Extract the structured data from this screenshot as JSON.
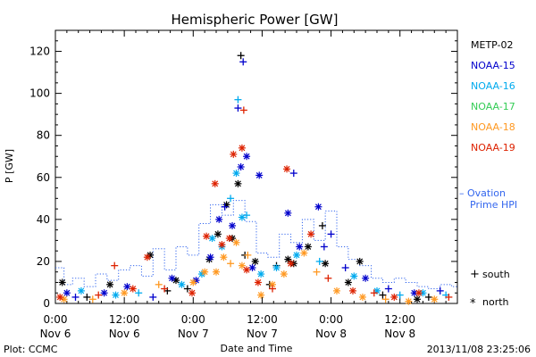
{
  "chart_data": {
    "type": "scatter",
    "title": "Hemispheric Power [GW]",
    "xlabel": "Date and Time",
    "ylabel": "P [GW]",
    "ylim": [
      0,
      130
    ],
    "xlim_hours": [
      0,
      70
    ],
    "grid": false,
    "legend_placement": "right",
    "y_ticks": [
      "0",
      "20",
      "40",
      "60",
      "80",
      "100",
      "120"
    ],
    "x_ticks": [
      {
        "t": 0,
        "line1": "0:00",
        "line2": "Nov 6"
      },
      {
        "t": 12,
        "line1": "12:00",
        "line2": "Nov 6"
      },
      {
        "t": 24,
        "line1": "0:00",
        "line2": "Nov 7"
      },
      {
        "t": 36,
        "line1": "12:00",
        "line2": "Nov 7"
      },
      {
        "t": 48,
        "line1": "0:00",
        "line2": "Nov 8"
      },
      {
        "t": 60,
        "line1": "12:00",
        "line2": "Nov 8"
      }
    ],
    "series": [
      {
        "name": "METP-02",
        "color": "#000000",
        "points": [
          {
            "x": 1.2,
            "y": 10,
            "m": "north"
          },
          {
            "x": 5.5,
            "y": 3,
            "m": "south"
          },
          {
            "x": 9.5,
            "y": 9,
            "m": "north"
          },
          {
            "x": 16.5,
            "y": 23,
            "m": "north"
          },
          {
            "x": 19.5,
            "y": 6,
            "m": "south"
          },
          {
            "x": 21,
            "y": 11,
            "m": "north"
          },
          {
            "x": 23,
            "y": 7,
            "m": "south"
          },
          {
            "x": 26.8,
            "y": 21,
            "m": "north"
          },
          {
            "x": 28.3,
            "y": 33,
            "m": "north"
          },
          {
            "x": 29.8,
            "y": 47,
            "m": "north"
          },
          {
            "x": 30.8,
            "y": 31,
            "m": "north"
          },
          {
            "x": 31.8,
            "y": 57,
            "m": "north"
          },
          {
            "x": 32.3,
            "y": 118,
            "m": "south"
          },
          {
            "x": 33,
            "y": 23,
            "m": "south"
          },
          {
            "x": 34.8,
            "y": 20,
            "m": "north"
          },
          {
            "x": 37.3,
            "y": 9,
            "m": "south"
          },
          {
            "x": 38.5,
            "y": 18,
            "m": "south"
          },
          {
            "x": 40.5,
            "y": 21,
            "m": "north"
          },
          {
            "x": 41.5,
            "y": 19,
            "m": "north"
          },
          {
            "x": 44,
            "y": 27,
            "m": "north"
          },
          {
            "x": 46.5,
            "y": 37,
            "m": "south"
          },
          {
            "x": 47,
            "y": 19,
            "m": "north"
          },
          {
            "x": 51,
            "y": 10,
            "m": "north"
          },
          {
            "x": 53,
            "y": 20,
            "m": "north"
          },
          {
            "x": 57,
            "y": 4,
            "m": "south"
          },
          {
            "x": 63,
            "y": 2,
            "m": "north"
          },
          {
            "x": 65,
            "y": 3,
            "m": "south"
          }
        ]
      },
      {
        "name": "NOAA-15",
        "color": "#0000cc",
        "points": [
          {
            "x": 2,
            "y": 5,
            "m": "north"
          },
          {
            "x": 3.5,
            "y": 3,
            "m": "south"
          },
          {
            "x": 8.5,
            "y": 5,
            "m": "north"
          },
          {
            "x": 12.5,
            "y": 8,
            "m": "north"
          },
          {
            "x": 17,
            "y": 3,
            "m": "south"
          },
          {
            "x": 20.3,
            "y": 12,
            "m": "north"
          },
          {
            "x": 24.5,
            "y": 11,
            "m": "north"
          },
          {
            "x": 27,
            "y": 22,
            "m": "north"
          },
          {
            "x": 28.5,
            "y": 40,
            "m": "north"
          },
          {
            "x": 29.5,
            "y": 46,
            "m": "south"
          },
          {
            "x": 30.8,
            "y": 37,
            "m": "north"
          },
          {
            "x": 31.8,
            "y": 93,
            "m": "south"
          },
          {
            "x": 32.3,
            "y": 65,
            "m": "north"
          },
          {
            "x": 32.7,
            "y": 115,
            "m": "south"
          },
          {
            "x": 33.3,
            "y": 70,
            "m": "north"
          },
          {
            "x": 34.3,
            "y": 17,
            "m": "north"
          },
          {
            "x": 35.5,
            "y": 61,
            "m": "north"
          },
          {
            "x": 40.5,
            "y": 43,
            "m": "north"
          },
          {
            "x": 41.5,
            "y": 62,
            "m": "south"
          },
          {
            "x": 42.5,
            "y": 27,
            "m": "north"
          },
          {
            "x": 45.8,
            "y": 46,
            "m": "north"
          },
          {
            "x": 46.8,
            "y": 27,
            "m": "south"
          },
          {
            "x": 48,
            "y": 33,
            "m": "south"
          },
          {
            "x": 50.5,
            "y": 17,
            "m": "south"
          },
          {
            "x": 54,
            "y": 12,
            "m": "north"
          },
          {
            "x": 58,
            "y": 7,
            "m": "south"
          },
          {
            "x": 62.5,
            "y": 5,
            "m": "north"
          },
          {
            "x": 67,
            "y": 6,
            "m": "south"
          }
        ]
      },
      {
        "name": "NOAA-16",
        "color": "#00aaee",
        "points": [
          {
            "x": 4.5,
            "y": 6,
            "m": "north"
          },
          {
            "x": 10.5,
            "y": 4,
            "m": "north"
          },
          {
            "x": 14.5,
            "y": 5,
            "m": "south"
          },
          {
            "x": 22,
            "y": 9,
            "m": "north"
          },
          {
            "x": 25.5,
            "y": 14,
            "m": "north"
          },
          {
            "x": 27.3,
            "y": 31,
            "m": "north"
          },
          {
            "x": 29,
            "y": 27,
            "m": "north"
          },
          {
            "x": 30.5,
            "y": 50,
            "m": "south"
          },
          {
            "x": 31.5,
            "y": 62,
            "m": "north"
          },
          {
            "x": 31.8,
            "y": 97,
            "m": "south"
          },
          {
            "x": 32.5,
            "y": 41,
            "m": "north"
          },
          {
            "x": 33.3,
            "y": 42,
            "m": "south"
          },
          {
            "x": 35.8,
            "y": 14,
            "m": "north"
          },
          {
            "x": 38.5,
            "y": 17,
            "m": "north"
          },
          {
            "x": 42,
            "y": 23,
            "m": "north"
          },
          {
            "x": 46,
            "y": 20,
            "m": "south"
          },
          {
            "x": 52,
            "y": 13,
            "m": "north"
          },
          {
            "x": 56,
            "y": 6,
            "m": "north"
          },
          {
            "x": 60,
            "y": 4,
            "m": "south"
          },
          {
            "x": 64,
            "y": 5,
            "m": "north"
          },
          {
            "x": 68,
            "y": 4,
            "m": "south"
          }
        ]
      },
      {
        "name": "NOAA-17",
        "color": "#33cc55",
        "points": []
      },
      {
        "name": "NOAA-18",
        "color": "#ff9922",
        "points": [
          {
            "x": 1.5,
            "y": 2,
            "m": "north"
          },
          {
            "x": 6.5,
            "y": 2,
            "m": "south"
          },
          {
            "x": 12,
            "y": 5,
            "m": "north"
          },
          {
            "x": 18,
            "y": 9,
            "m": "south"
          },
          {
            "x": 24,
            "y": 10,
            "m": "north"
          },
          {
            "x": 26,
            "y": 15,
            "m": "north"
          },
          {
            "x": 28,
            "y": 15,
            "m": "north"
          },
          {
            "x": 29.3,
            "y": 22,
            "m": "north"
          },
          {
            "x": 30.5,
            "y": 19,
            "m": "south"
          },
          {
            "x": 31.5,
            "y": 29,
            "m": "north"
          },
          {
            "x": 32.5,
            "y": 18,
            "m": "north"
          },
          {
            "x": 33.5,
            "y": 23,
            "m": "south"
          },
          {
            "x": 35.8,
            "y": 4,
            "m": "north"
          },
          {
            "x": 37.8,
            "y": 9,
            "m": "north"
          },
          {
            "x": 39.8,
            "y": 14,
            "m": "north"
          },
          {
            "x": 43.3,
            "y": 24,
            "m": "north"
          },
          {
            "x": 45.5,
            "y": 15,
            "m": "south"
          },
          {
            "x": 49,
            "y": 6,
            "m": "north"
          },
          {
            "x": 53.5,
            "y": 3,
            "m": "north"
          },
          {
            "x": 57.5,
            "y": 2,
            "m": "south"
          },
          {
            "x": 61.5,
            "y": 1,
            "m": "north"
          },
          {
            "x": 66,
            "y": 2,
            "m": "north"
          }
        ]
      },
      {
        "name": "NOAA-19",
        "color": "#dd2200",
        "points": [
          {
            "x": 0.8,
            "y": 3,
            "m": "north"
          },
          {
            "x": 7.5,
            "y": 4,
            "m": "south"
          },
          {
            "x": 10.3,
            "y": 18,
            "m": "south"
          },
          {
            "x": 13.5,
            "y": 7,
            "m": "north"
          },
          {
            "x": 16,
            "y": 22,
            "m": "north"
          },
          {
            "x": 19,
            "y": 7,
            "m": "south"
          },
          {
            "x": 23.8,
            "y": 5,
            "m": "north"
          },
          {
            "x": 26.3,
            "y": 32,
            "m": "north"
          },
          {
            "x": 27.8,
            "y": 57,
            "m": "north"
          },
          {
            "x": 29,
            "y": 28,
            "m": "north"
          },
          {
            "x": 30.3,
            "y": 31,
            "m": "north"
          },
          {
            "x": 31,
            "y": 71,
            "m": "north"
          },
          {
            "x": 32.5,
            "y": 74,
            "m": "north"
          },
          {
            "x": 32.8,
            "y": 92,
            "m": "south"
          },
          {
            "x": 33.3,
            "y": 16,
            "m": "north"
          },
          {
            "x": 35.3,
            "y": 10,
            "m": "north"
          },
          {
            "x": 37.8,
            "y": 7,
            "m": "south"
          },
          {
            "x": 40.3,
            "y": 64,
            "m": "north"
          },
          {
            "x": 41,
            "y": 19,
            "m": "north"
          },
          {
            "x": 44.5,
            "y": 33,
            "m": "north"
          },
          {
            "x": 47.5,
            "y": 12,
            "m": "south"
          },
          {
            "x": 51.8,
            "y": 6,
            "m": "north"
          },
          {
            "x": 55.5,
            "y": 5,
            "m": "south"
          },
          {
            "x": 59,
            "y": 3,
            "m": "north"
          },
          {
            "x": 63.3,
            "y": 5,
            "m": "north"
          },
          {
            "x": 68.5,
            "y": 3,
            "m": "south"
          }
        ]
      }
    ],
    "ovation": {
      "label_line1": "– Ovation",
      "label_line2": "Prime HPI",
      "color": "#3366ee",
      "steps": [
        [
          0,
          17
        ],
        [
          1.5,
          9
        ],
        [
          3,
          12
        ],
        [
          5,
          8
        ],
        [
          7,
          14
        ],
        [
          9,
          11
        ],
        [
          11,
          16
        ],
        [
          13,
          18
        ],
        [
          15,
          13
        ],
        [
          17,
          26
        ],
        [
          19,
          16
        ],
        [
          21,
          27
        ],
        [
          23,
          23
        ],
        [
          25,
          38
        ],
        [
          27,
          47
        ],
        [
          29,
          42
        ],
        [
          31,
          49
        ],
        [
          33,
          39
        ],
        [
          35,
          24
        ],
        [
          37,
          22
        ],
        [
          39,
          33
        ],
        [
          41,
          29
        ],
        [
          43,
          40
        ],
        [
          45,
          30
        ],
        [
          47,
          44
        ],
        [
          49,
          27
        ],
        [
          51,
          21
        ],
        [
          53,
          18
        ],
        [
          55,
          12
        ],
        [
          57,
          10
        ],
        [
          59,
          12
        ],
        [
          61,
          10
        ],
        [
          63,
          8
        ],
        [
          65,
          7
        ],
        [
          67,
          9
        ],
        [
          69,
          8
        ],
        [
          70,
          8
        ]
      ]
    },
    "markers": {
      "south_symbol": "+",
      "south_label": "south",
      "north_symbol": "*",
      "north_label": "north"
    }
  },
  "footer": {
    "left": "Plot: CCMC",
    "timestamp": "2013/11/08 23:25:06"
  }
}
